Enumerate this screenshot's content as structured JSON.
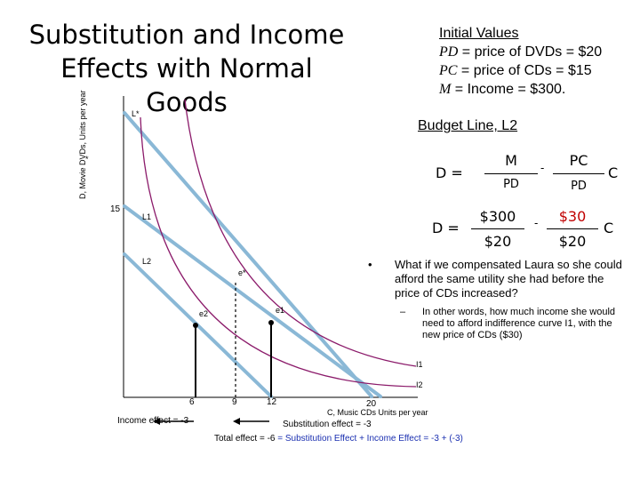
{
  "title": "Substitution and Income Effects with Normal Goods",
  "y_axis_label": "D, Movie DVDs, Units per year",
  "x_axis_label": "C, Music CDs Units per year",
  "initial_values": {
    "heading": "Initial Values",
    "line1_sym": "PD",
    "line1_rest": " = price of DVDs = $20",
    "line2_sym": "PC",
    "line2_rest": " = price of CDs = $15",
    "line3_sym": "M",
    "line3_rest": " = Income = $300."
  },
  "budget_line": {
    "heading": "Budget Line, L2",
    "eq1": {
      "lhs": "D =",
      "num1": "M",
      "den1": "PD",
      "op": "-",
      "num2": "PC",
      "den2": "PD",
      "var": "C"
    },
    "eq2": {
      "lhs": "D =",
      "num1": "$300",
      "den1": "$20",
      "op": "-",
      "num2": "$30",
      "den2": "$20",
      "var": "C"
    }
  },
  "note": {
    "bullet": "•",
    "text": "What if we compensated Laura so she could afford the same utility she had before the price of CDs increased?",
    "sub_dash": "–",
    "sub_text": "In other words, how much income she would need to afford indifference curve I1, with the new price of CDs ($30)"
  },
  "labels": {
    "L_star": "L*",
    "L1": "L1",
    "L2": "L2",
    "e_star": "e*",
    "e1": "e1",
    "e2": "e2",
    "I1": "I1",
    "I2": "I2",
    "y_tick_15": "15",
    "y_tick_small": "*"
  },
  "x_ticks": [
    "6",
    "9",
    "12",
    "20"
  ],
  "effects": {
    "income": "Income effect = -3",
    "substitution": "Substitution effect = -3",
    "total_prefix": "Total effect = -6",
    "total_formula": "= Substitution Effect + Income Effect = -3 + (-3)"
  },
  "colors": {
    "budget_lines": "#8ab8d6",
    "indifference_curves": "#8b1a6a",
    "note_box": "#f5c400",
    "effect_text": "#1a2fb0",
    "text": "#000000"
  }
}
